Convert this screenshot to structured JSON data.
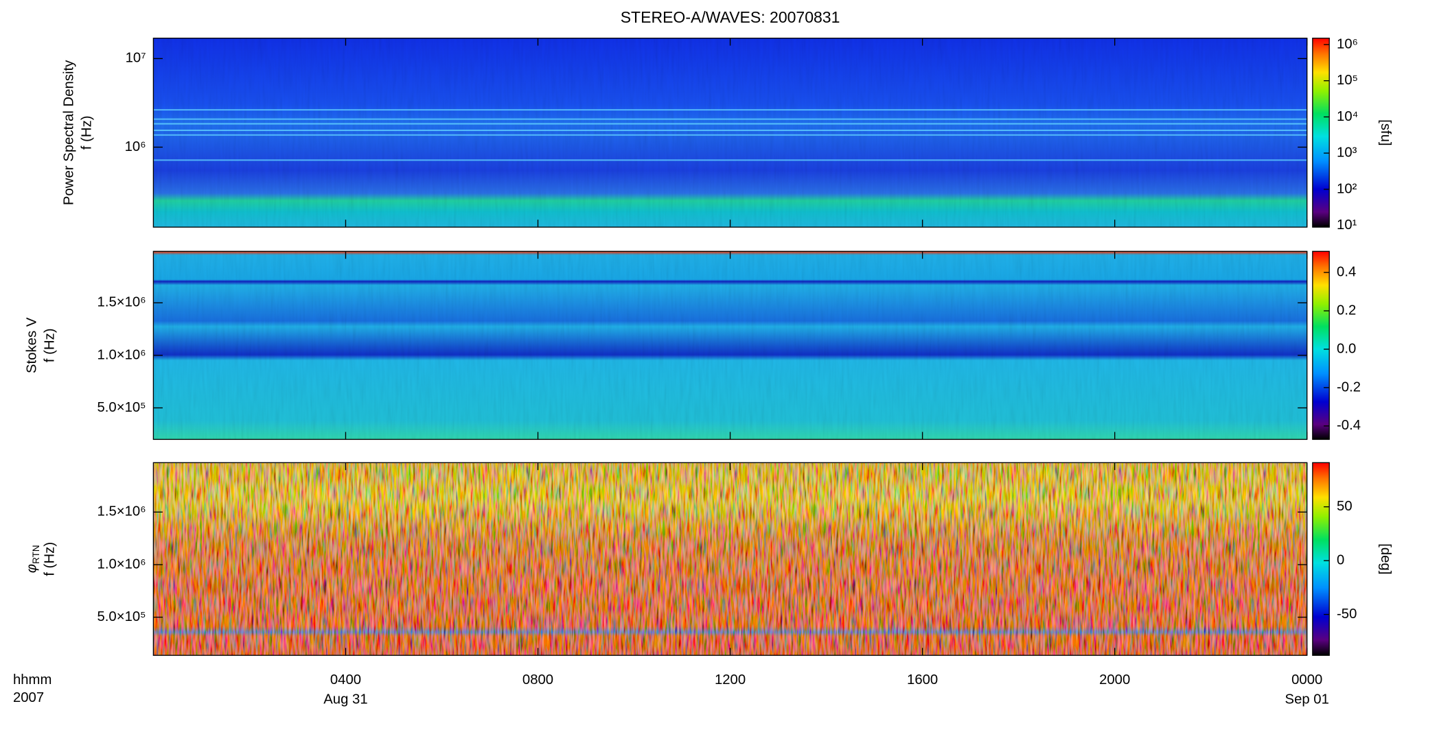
{
  "chart_data": [
    {
      "type": "heatmap",
      "title": "STEREO-A/WAVES: 20070831",
      "ylabel": "Power Spectral Density",
      "yunit": "f (Hz)",
      "ylog": true,
      "ylim": [
        125000,
        17000000
      ],
      "yticks": [
        {
          "value": 1000000,
          "label": "10⁶"
        },
        {
          "value": 10000000,
          "label": "10⁷"
        }
      ],
      "zlog": true,
      "zlim": [
        9,
        1500000
      ],
      "zticks": [
        {
          "value": 10,
          "label": "10¹"
        },
        {
          "value": 100,
          "label": "10²"
        },
        {
          "value": 1000,
          "label": "10³"
        },
        {
          "value": 10000,
          "label": "10⁴"
        },
        {
          "value": 100000,
          "label": "10⁵"
        },
        {
          "value": 1000000,
          "label": "10⁶"
        }
      ],
      "zlabel": "[sfu]"
    },
    {
      "type": "heatmap",
      "ylabel": "Stokes V",
      "yunit": "f (Hz)",
      "ylim": [
        200000,
        1990000
      ],
      "yticks": [
        {
          "value": 500000,
          "label": "5.0×10⁵"
        },
        {
          "value": 1000000,
          "label": "1.0×10⁶"
        },
        {
          "value": 1500000,
          "label": "1.5×10⁶"
        }
      ],
      "zlim": [
        -0.47,
        0.51
      ],
      "zticks": [
        -0.4,
        -0.2,
        {
          "value": 0,
          "label": "0.0"
        },
        0.2,
        0.4
      ]
    },
    {
      "type": "heatmap",
      "ylabel": "φ",
      "ylabel_sub": "RTN",
      "yunit": "f (Hz)",
      "ylim": [
        137000,
        1970000
      ],
      "yticks": [
        {
          "value": 500000,
          "label": "5.0×10⁵"
        },
        {
          "value": 1000000,
          "label": "1.0×10⁶"
        },
        {
          "value": 1500000,
          "label": "1.5×10⁶"
        }
      ],
      "zlim": [
        -88,
        91
      ],
      "zticks": [
        -50,
        0,
        50
      ],
      "zlabel": "[deg]",
      "xlim": [
        0,
        24
      ],
      "xticks": [
        {
          "value": 4,
          "label": "0400"
        },
        {
          "value": 8,
          "label": "0800"
        },
        {
          "value": 12,
          "label": "1200"
        },
        {
          "value": 16,
          "label": "1600"
        },
        {
          "value": 20,
          "label": "2000"
        },
        {
          "value": 24,
          "label": "0000"
        }
      ],
      "xdates": [
        {
          "value": 4,
          "label": "Aug 31"
        },
        {
          "value": 24,
          "label": "Sep 01"
        }
      ],
      "xlabel": [
        "hhmm",
        "2007"
      ]
    }
  ]
}
